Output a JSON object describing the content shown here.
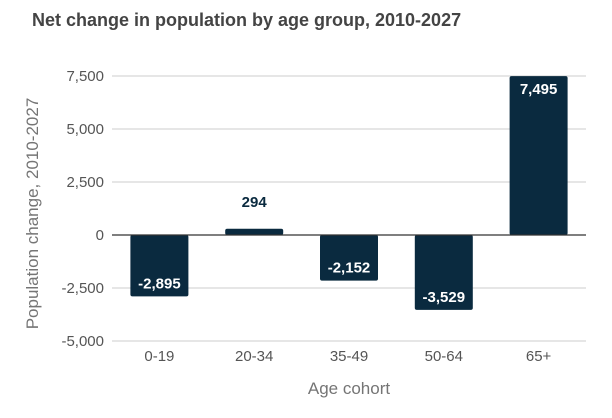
{
  "chart_data": {
    "type": "bar",
    "title": "Net change in population by age group, 2010-2027",
    "xlabel": "Age cohort",
    "ylabel": "Population change, 2010-2027",
    "categories": [
      "0-19",
      "20-34",
      "35-49",
      "50-64",
      "65+"
    ],
    "values": [
      -2895,
      294,
      -2152,
      -3529,
      7495
    ],
    "data_labels": [
      "-2,895",
      "294",
      "-2,152",
      "-3,529",
      "7,495"
    ],
    "ylim": [
      -5000,
      7500
    ],
    "yticks": [
      7500,
      5000,
      2500,
      0,
      -2500,
      -5000
    ],
    "ytick_labels": [
      "7,500",
      "5,000",
      "2,500",
      "0",
      "-2,500",
      "-5,000"
    ],
    "grid": true,
    "legend": "none",
    "colors": {
      "bar": "#0a2a3f",
      "label_inside": "#ffffff",
      "label_outside": "#0a2a3f",
      "grid": "#cccccc",
      "zero_line": "#333333"
    }
  }
}
